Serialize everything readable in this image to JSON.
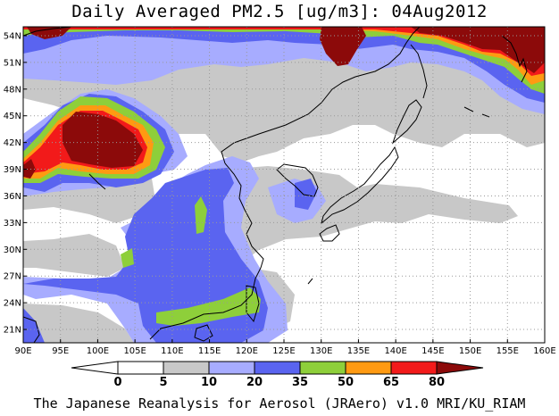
{
  "title": "Daily Averaged PM2.5 [ug/m3]: 04Aug2012",
  "footer": "The Japanese Reanalysis for Aerosol (JRAero) v1.0 MRI/KU_RIAM",
  "lat_labels": [
    "54N",
    "51N",
    "48N",
    "45N",
    "42N",
    "39N",
    "36N",
    "33N",
    "30N",
    "27N",
    "24N",
    "21N"
  ],
  "lon_labels": [
    "90E",
    "95E",
    "100E",
    "105E",
    "110E",
    "115E",
    "120E",
    "125E",
    "130E",
    "135E",
    "140E",
    "145E",
    "150E",
    "155E",
    "160E"
  ],
  "colorbar": {
    "levels": [
      "0",
      "5",
      "10",
      "20",
      "35",
      "50",
      "65",
      "80"
    ],
    "colors": [
      "#ffffff",
      "#c8c8c8",
      "#a7acff",
      "#5a64f0",
      "#8ecf3a",
      "#ff9a12",
      "#f21a1a",
      "#8c0a0a"
    ]
  }
}
